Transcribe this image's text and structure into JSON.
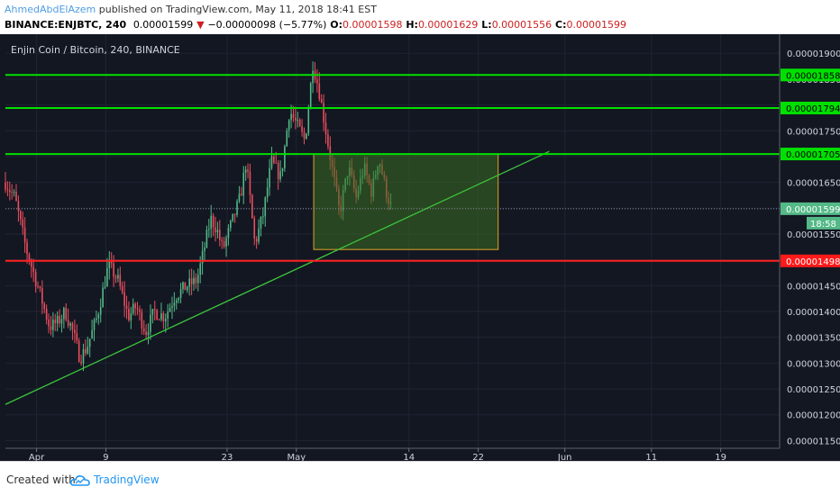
{
  "header": {
    "author": "AhmedAbdElAzem",
    "published_text": " published on TradingView.com, May 11, 2018 18:41 EST",
    "symbol": "BINANCE:ENJBTC, 240",
    "last": "0.00001599",
    "change": "−0.00000098 (−5.77%)",
    "open_label": "O:",
    "open": "0.00001598",
    "high_label": "H:",
    "high": "0.00001629",
    "low_label": "L:",
    "low": "0.00001556",
    "close_label": "C:",
    "close": "0.00001599"
  },
  "footer": {
    "created_with": "Created with",
    "brand": "TradingView"
  },
  "colors": {
    "background": "#131722",
    "grid": "#1f2433",
    "up": "#53b987",
    "down": "#eb4d5c",
    "support_line": "#ff2020",
    "resistance_line": "#00e000",
    "trendline": "#3cc43c",
    "box_fill": "#3b6e20",
    "box_border": "#e0a82a",
    "axis_text": "#d1d4dc"
  },
  "chart_data": {
    "type": "candlestick",
    "title": "Enjin Coin / Bitcoin, 240, BINANCE",
    "y_ticks": [
      "0.00001900",
      "0.00001850",
      "0.00001800",
      "0.00001750",
      "0.00001700",
      "0.00001650",
      "0.00001600",
      "0.00001550",
      "0.00001500",
      "0.00001450",
      "0.00001400",
      "0.00001350",
      "0.00001300",
      "0.00001250",
      "0.00001200",
      "0.00001150"
    ],
    "y_tick_values": [
      1.9e-05,
      1.85e-05,
      1.8e-05,
      1.75e-05,
      1.7e-05,
      1.65e-05,
      1.6e-05,
      1.55e-05,
      1.5e-05,
      1.45e-05,
      1.4e-05,
      1.35e-05,
      1.3e-05,
      1.25e-05,
      1.2e-05,
      1.15e-05
    ],
    "ylim": [
      1.135e-05,
      1.937e-05
    ],
    "x_ticks": [
      "Apr",
      "9",
      "23",
      "May",
      "14",
      "22",
      "Jun",
      "11",
      "19"
    ],
    "x_tick_days": [
      0,
      8,
      22,
      30,
      43,
      51,
      61,
      71,
      79
    ],
    "xlim_days": [
      -3.6,
      85.8
    ],
    "horizontal_levels": [
      {
        "value": 1.858e-05,
        "label": "0.00001858",
        "kind": "resistance"
      },
      {
        "value": 1.794e-05,
        "label": "0.00001794",
        "kind": "resistance"
      },
      {
        "value": 1.705e-05,
        "label": "0.00001705",
        "kind": "resistance"
      },
      {
        "value": 1.498e-05,
        "label": "0.00001498",
        "kind": "support"
      }
    ],
    "current_price": {
      "value": 1.599e-05,
      "label": "0.00001599",
      "countdown": "18:58"
    },
    "trendline": {
      "start": [
        -3.6,
        1.22e-05
      ],
      "end": [
        59.2,
        1.71e-05
      ]
    },
    "box": {
      "day_start": 32.0,
      "day_end": 53.3,
      "top": 1.705e-05,
      "bottom": 1.52e-05
    },
    "keypoints": [
      [
        -3.6,
        16.5
      ],
      [
        -2.5,
        16.2
      ],
      [
        -1.2,
        15.2
      ],
      [
        0.3,
        14.4
      ],
      [
        1.5,
        13.7
      ],
      [
        2.5,
        13.8
      ],
      [
        3.3,
        14.0
      ],
      [
        4.2,
        13.6
      ],
      [
        5.0,
        13.1
      ],
      [
        5.8,
        13.3
      ],
      [
        7.0,
        13.9
      ],
      [
        8.3,
        14.9
      ],
      [
        9.4,
        14.6
      ],
      [
        10.6,
        13.9
      ],
      [
        11.5,
        14.1
      ],
      [
        12.6,
        13.6
      ],
      [
        13.6,
        14.0
      ],
      [
        14.8,
        13.9
      ],
      [
        16.0,
        14.3
      ],
      [
        17.4,
        14.5
      ],
      [
        18.5,
        14.6
      ],
      [
        19.2,
        15.1
      ],
      [
        20.1,
        15.8
      ],
      [
        20.8,
        15.6
      ],
      [
        21.5,
        15.2
      ],
      [
        22.5,
        15.7
      ],
      [
        23.5,
        16.2
      ],
      [
        24.2,
        16.9
      ],
      [
        25.2,
        15.3
      ],
      [
        26.2,
        15.9
      ],
      [
        27.1,
        16.9
      ],
      [
        28.2,
        16.6
      ],
      [
        29.2,
        17.9
      ],
      [
        30.1,
        17.6
      ],
      [
        31.0,
        17.3
      ],
      [
        31.9,
        18.8
      ],
      [
        32.6,
        18.3
      ],
      [
        33.3,
        17.6
      ],
      [
        34.2,
        16.7
      ],
      [
        35.0,
        15.9
      ],
      [
        36.0,
        16.8
      ],
      [
        36.9,
        16.2
      ],
      [
        37.8,
        16.8
      ],
      [
        38.7,
        16.3
      ],
      [
        39.5,
        17.0
      ],
      [
        40.4,
        16.3
      ],
      [
        41.0,
        15.99
      ]
    ]
  }
}
